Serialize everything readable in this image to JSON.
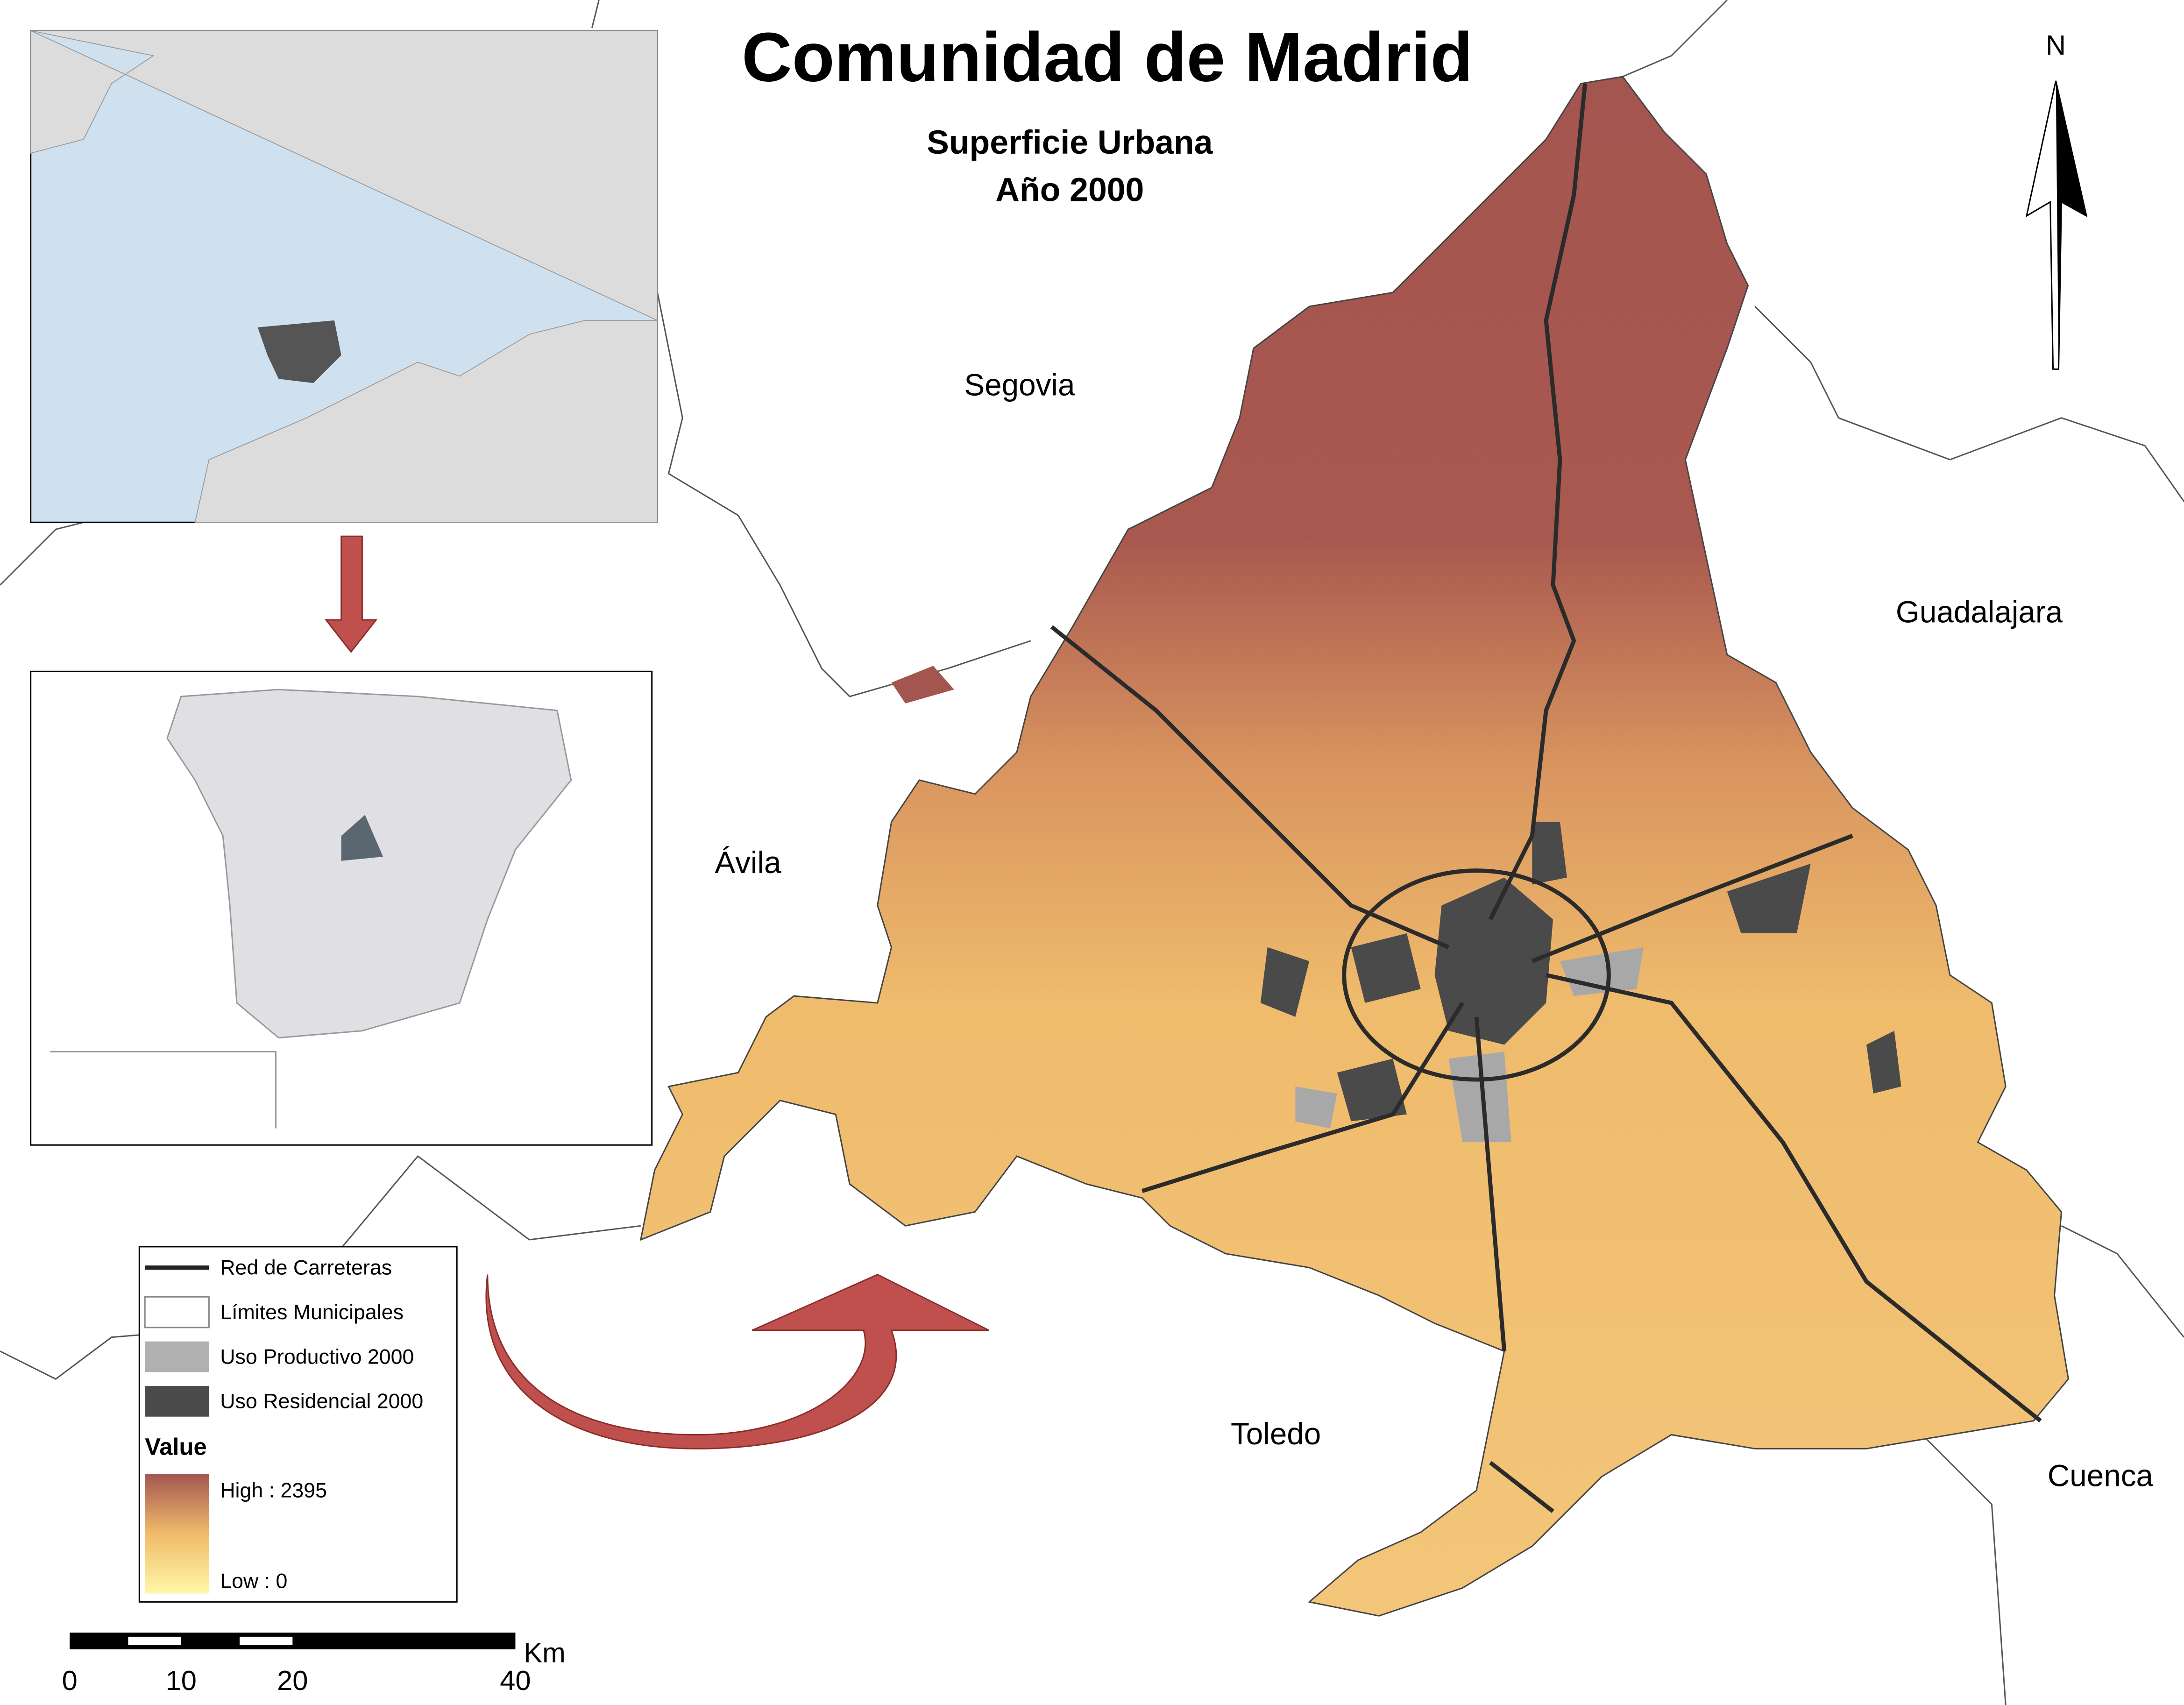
{
  "title": "Comunidad de Madrid",
  "subtitle": [
    "Superficie Urbana",
    "Año 2000"
  ],
  "north": "N",
  "places": [
    "Segovia",
    "Guadalajara",
    "Ávila",
    "Toledo",
    "Cuenca"
  ],
  "legend": {
    "items": [
      "Red de Carreteras",
      "Límites Municipales",
      "Uso Productivo 2000",
      "Uso Residencial 2000"
    ],
    "value_title": "Value",
    "high": "High : 2395",
    "low": "Low : 0"
  },
  "scale_bar": {
    "ticks": [
      0,
      10,
      20,
      40
    ],
    "unit": "Km"
  }
}
